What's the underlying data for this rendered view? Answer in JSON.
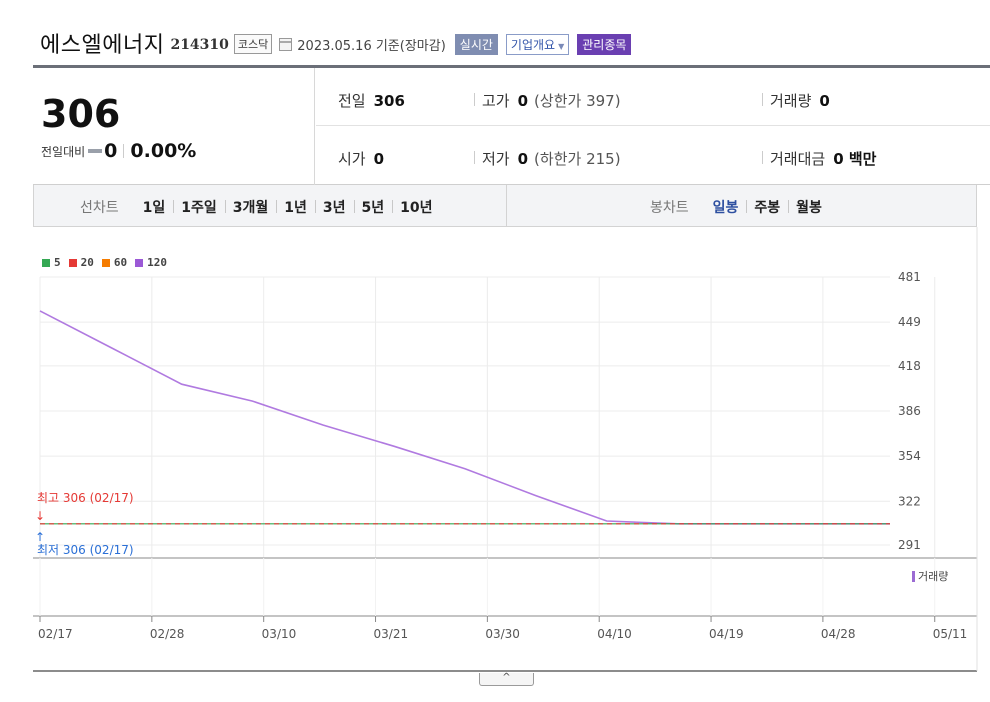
{
  "stock": {
    "name": "에스엘에너지",
    "code": "214310",
    "market": "코스닥",
    "date": "2023.05.16 기준(장마감)",
    "realtime_label": "실시간",
    "company_label": "기업개요",
    "manage_label": "관리종목"
  },
  "price": {
    "current": "306",
    "change_label": "전일대비",
    "change": "0",
    "change_pct": "0.00%"
  },
  "info": {
    "prev_label": "전일",
    "prev": "306",
    "high_label": "고가",
    "high": "0",
    "high_sub": "(상한가 397)",
    "volume_label": "거래량",
    "volume": "0",
    "open_label": "시가",
    "open": "0",
    "low_label": "저가",
    "low": "0",
    "low_sub": "(하한가 215)",
    "amount_label": "거래대금",
    "amount": "0 백만"
  },
  "tabs": {
    "line_title": "선차트",
    "line_items": [
      "1일",
      "1주일",
      "3개월",
      "1년",
      "3년",
      "5년",
      "10년"
    ],
    "candle_title": "봉차트",
    "candle_items": [
      "일봉",
      "주봉",
      "월봉"
    ],
    "candle_active": 0
  },
  "chart_data": {
    "type": "line",
    "legend": [
      {
        "name": "5",
        "color": "#34a853"
      },
      {
        "name": "20",
        "color": "#e53935"
      },
      {
        "name": "60",
        "color": "#f57c00"
      },
      {
        "name": "120",
        "color": "#9b59d6"
      }
    ],
    "yticks": [
      481,
      449,
      418,
      386,
      354,
      322,
      291
    ],
    "ylim": [
      291,
      481
    ],
    "x_labels": [
      "02/17",
      "02/28",
      "03/10",
      "03/21",
      "03/30",
      "04/10",
      "04/19",
      "04/28",
      "05/11"
    ],
    "x_index_range": [
      0,
      60
    ],
    "series": [
      {
        "name": "120",
        "color": "#b07ae0",
        "x": [
          0,
          5,
          10,
          15,
          20,
          25,
          30,
          35,
          40,
          45,
          50,
          55,
          60
        ],
        "values": [
          457,
          431,
          405,
          393,
          376,
          361,
          345,
          326,
          308,
          306,
          306,
          306,
          306
        ]
      },
      {
        "name": "5",
        "color": "#34a853",
        "x": [
          0,
          60
        ],
        "values": [
          306,
          306
        ]
      },
      {
        "name": "20",
        "color": "#e53935",
        "x": [
          0,
          60
        ],
        "values": [
          306,
          306
        ],
        "dashed": true
      }
    ],
    "max_label": "최고 306 (02/17)",
    "min_label": "최저 306 (02/17)",
    "max_arrow": "↓",
    "min_arrow": "↑",
    "volume_legend": "거래량",
    "grid": true
  },
  "collapse_icon": "^"
}
